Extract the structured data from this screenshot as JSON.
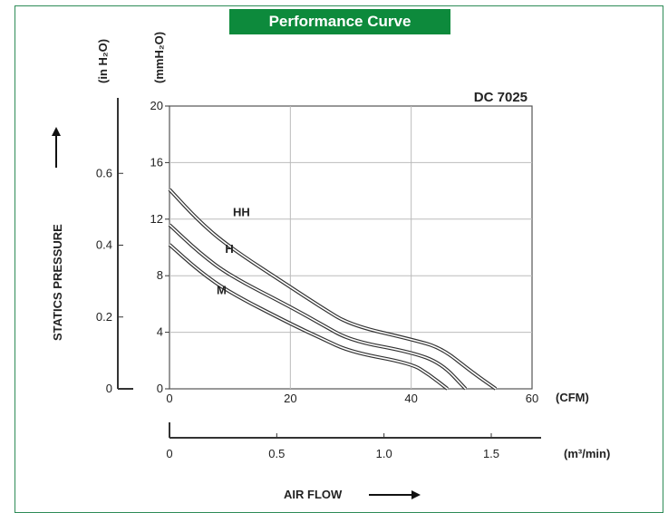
{
  "banner_title": "Performance Curve",
  "colors": {
    "banner": "#0d8a3c",
    "frame": "#2e8b57",
    "curve": "#333333",
    "grid": "#bbbbbb"
  },
  "chart_data": {
    "type": "line",
    "title": "Performance Curve",
    "model_label": "DC 7025",
    "y_left_unit": "(in H₂O)",
    "y_right_unit": "(mmH₂O)",
    "y_axis_label": "STATICS PRESSURE",
    "x_unit_cfm": "(CFM)",
    "x_unit_m3": "(m³/min)",
    "x_axis_label": "AIR FLOW",
    "ylim_mmH2O": [
      0,
      20
    ],
    "xlim_cfm": [
      0,
      60
    ],
    "y_ticks_mmH2O": [
      "0",
      "4",
      "8",
      "12",
      "16",
      "20"
    ],
    "y_ticks_inH2O": [
      "0",
      "0.2",
      "0.4",
      "0.6"
    ],
    "y_ticks_inH2O_values": [
      0,
      0.2,
      0.4,
      0.6
    ],
    "x_ticks_cfm": [
      "0",
      "20",
      "40",
      "60"
    ],
    "x_ticks_m3": [
      "0",
      "0.5",
      "1.0",
      "1.5"
    ],
    "x_ticks_m3_values": [
      0,
      0.5,
      1.0,
      1.5
    ],
    "grid": true,
    "series": [
      {
        "name": "HH",
        "x": [
          0,
          5,
          10,
          20,
          25,
          30,
          40,
          45,
          50,
          54
        ],
        "y": [
          14.1,
          11.8,
          10.0,
          7.2,
          5.8,
          4.5,
          3.5,
          2.9,
          1.2,
          0
        ]
      },
      {
        "name": "H",
        "x": [
          0,
          5,
          10,
          20,
          25,
          30,
          40,
          45,
          49
        ],
        "y": [
          11.6,
          9.6,
          8.0,
          5.8,
          4.6,
          3.4,
          2.6,
          1.8,
          0
        ]
      },
      {
        "name": "M",
        "x": [
          0,
          5,
          10,
          20,
          25,
          30,
          40,
          43,
          46
        ],
        "y": [
          10.2,
          8.3,
          6.8,
          4.6,
          3.6,
          2.6,
          1.8,
          1.0,
          0
        ]
      }
    ]
  }
}
